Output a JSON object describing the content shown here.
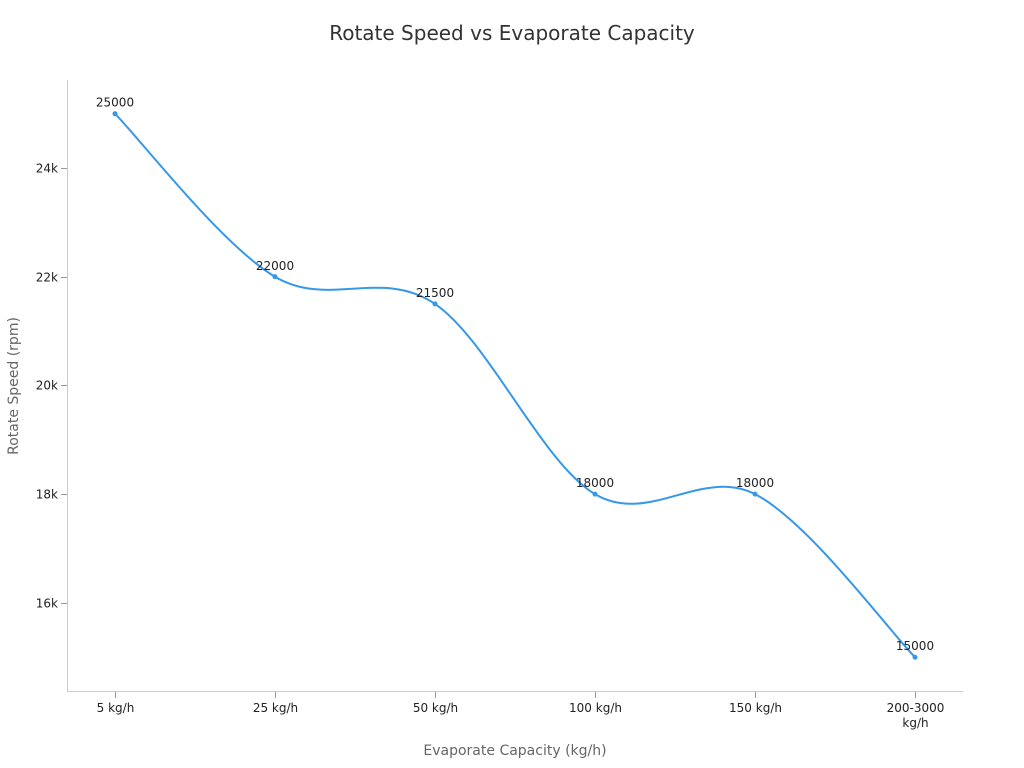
{
  "chart_data": {
    "type": "line",
    "title": "Rotate Speed vs Evaporate Capacity",
    "xlabel": "Evaporate Capacity (kg/h)",
    "ylabel": "Rotate Speed (rpm)",
    "categories": [
      "5 kg/h",
      "25 kg/h",
      "50 kg/h",
      "100 kg/h",
      "150 kg/h",
      "200-3000 kg/h"
    ],
    "values": [
      25000,
      22000,
      21500,
      18000,
      18000,
      15000
    ],
    "yticks": [
      16000,
      18000,
      20000,
      22000,
      24000
    ],
    "ytick_labels": [
      "16k",
      "18k",
      "20k",
      "22k",
      "24k"
    ],
    "ylim": [
      14360,
      25620
    ],
    "grid": false,
    "smooth": true,
    "data_labels": true,
    "line_color": "#3598e8"
  }
}
